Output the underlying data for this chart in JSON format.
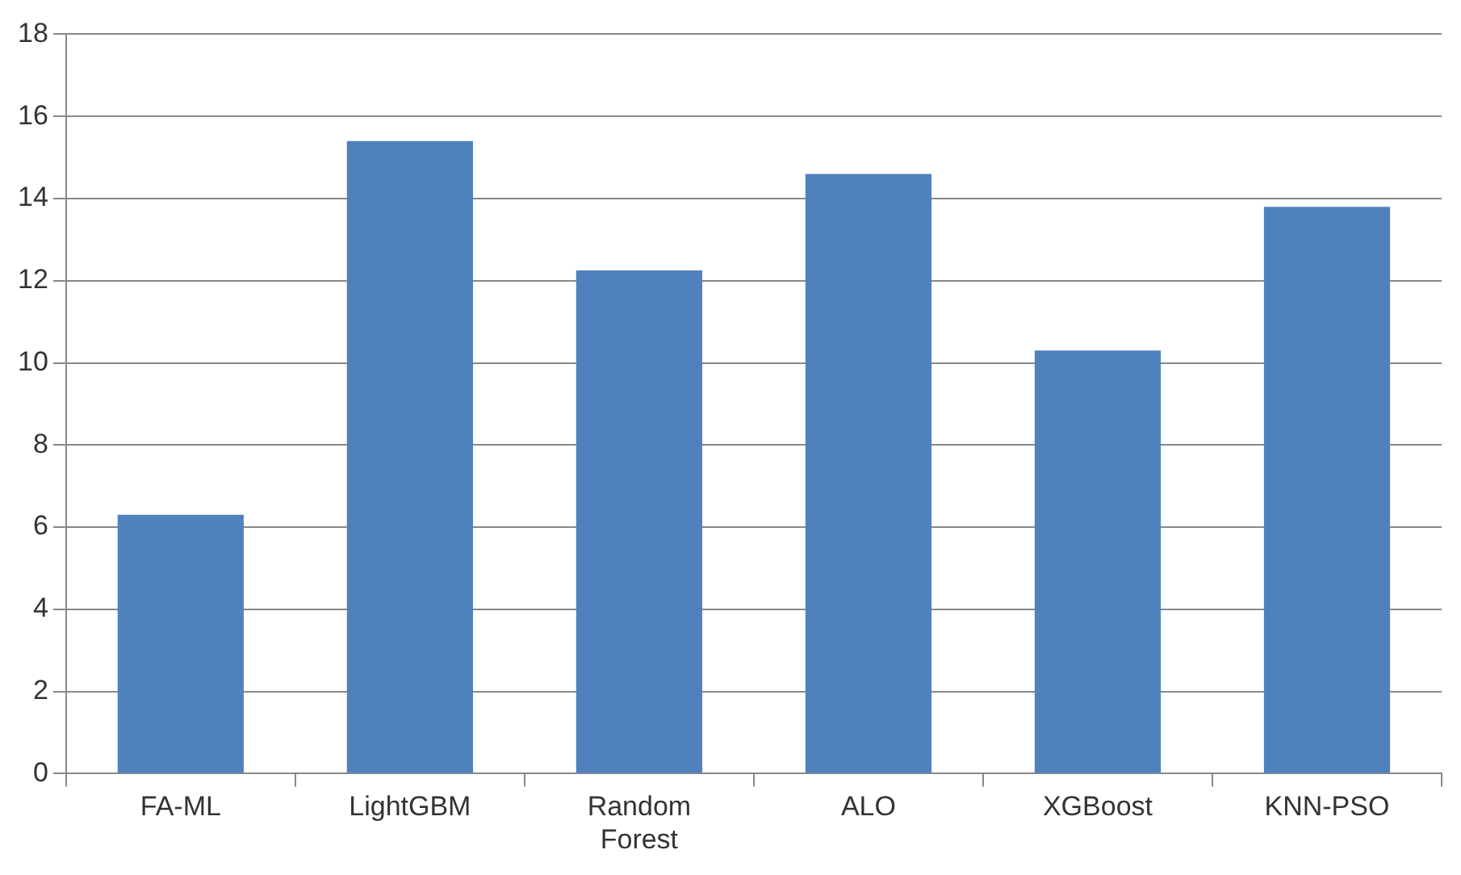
{
  "chart_data": {
    "type": "bar",
    "categories": [
      "FA-ML",
      "LightGBM",
      "Random Forest",
      "ALO",
      "XGBoost",
      "KNN-PSO"
    ],
    "values": [
      6.3,
      15.4,
      12.25,
      14.6,
      10.3,
      13.8
    ],
    "color": "#4f81bd",
    "ylim": [
      0,
      18
    ],
    "yticks": [
      0,
      2,
      4,
      6,
      8,
      10,
      12,
      14,
      16,
      18
    ],
    "grid": "y",
    "legend": false
  }
}
